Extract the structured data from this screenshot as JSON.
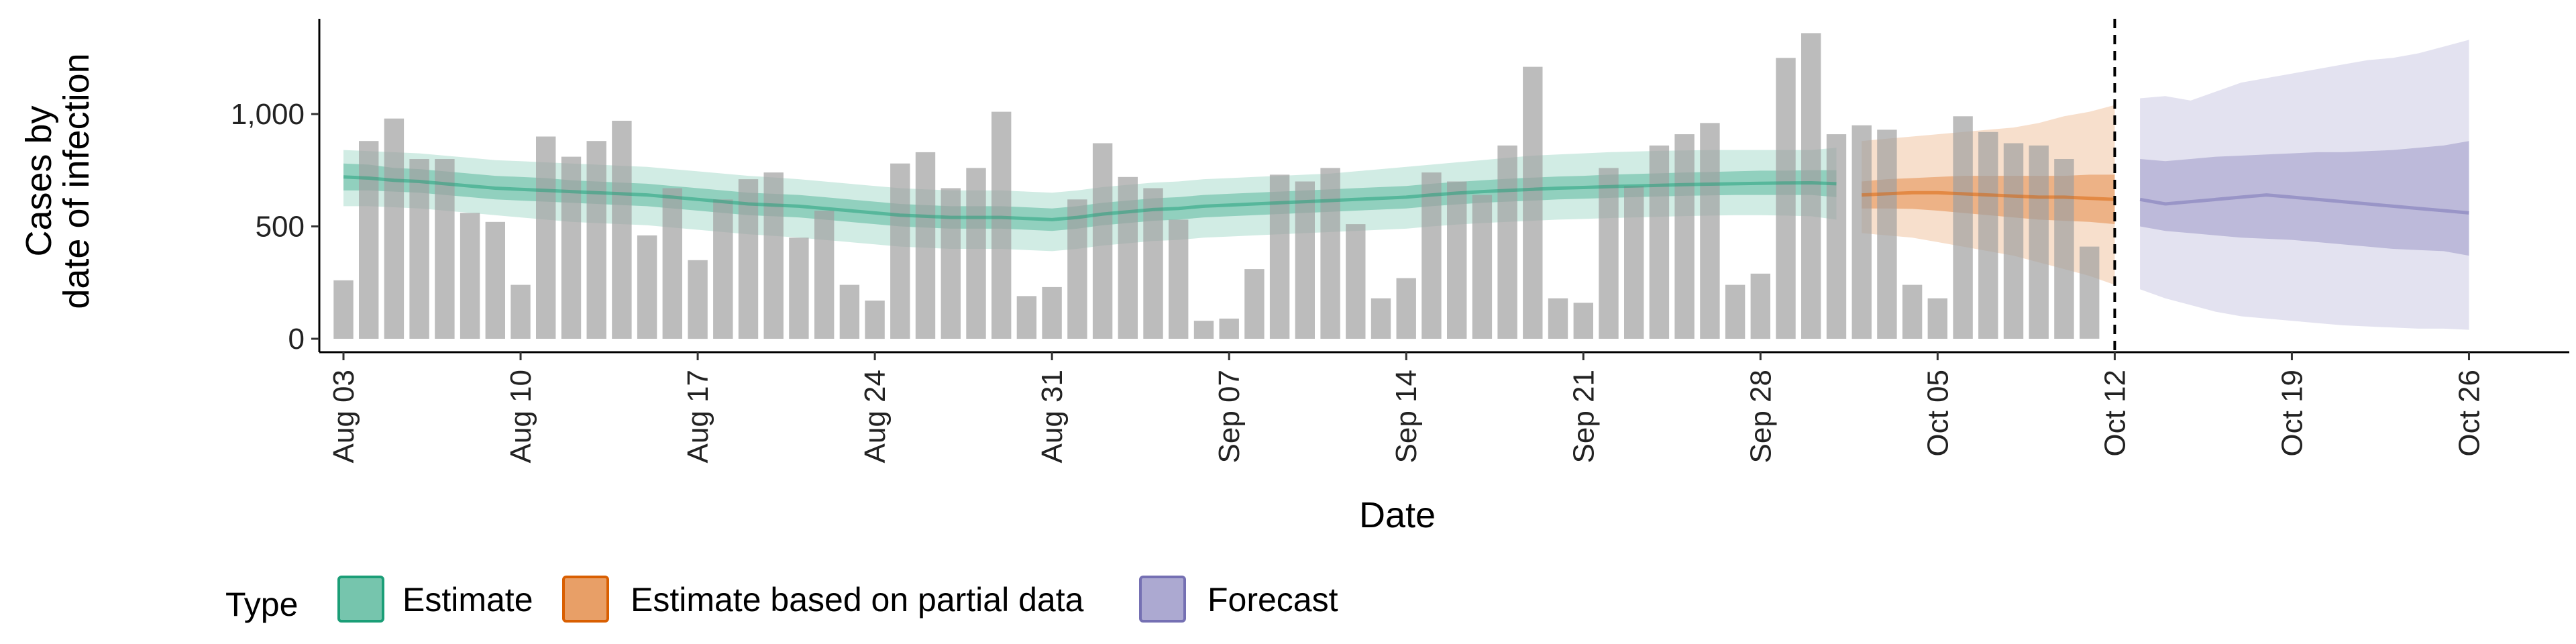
{
  "chart_data": {
    "type": "bar",
    "xlabel": "Date",
    "ylabel_lines": [
      "Cases by",
      "date of infection"
    ],
    "ylim": [
      0,
      1400
    ],
    "y_ticks": [
      {
        "value": 0,
        "label": "0"
      },
      {
        "value": 500,
        "label": "500"
      },
      {
        "value": 1000,
        "label": "1,000"
      }
    ],
    "x_ticks": [
      {
        "day": 0,
        "label": "Aug 03"
      },
      {
        "day": 7,
        "label": "Aug 10"
      },
      {
        "day": 14,
        "label": "Aug 17"
      },
      {
        "day": 21,
        "label": "Aug 24"
      },
      {
        "day": 28,
        "label": "Aug 31"
      },
      {
        "day": 35,
        "label": "Sep 07"
      },
      {
        "day": 42,
        "label": "Sep 14"
      },
      {
        "day": 49,
        "label": "Sep 21"
      },
      {
        "day": 56,
        "label": "Sep 28"
      },
      {
        "day": 63,
        "label": "Oct 05"
      },
      {
        "day": 70,
        "label": "Oct 12"
      },
      {
        "day": 77,
        "label": "Oct 19"
      },
      {
        "day": 84,
        "label": "Oct 26"
      }
    ],
    "reported_cases": [
      260,
      880,
      980,
      800,
      800,
      560,
      520,
      240,
      900,
      810,
      880,
      970,
      460,
      670,
      350,
      620,
      710,
      740,
      450,
      570,
      240,
      170,
      780,
      830,
      670,
      760,
      1010,
      190,
      230,
      620,
      870,
      720,
      670,
      530,
      80,
      90,
      310,
      730,
      700,
      760,
      510,
      180,
      270,
      740,
      700,
      640,
      860,
      1210,
      180,
      160,
      760,
      680,
      860,
      910,
      960,
      240,
      290,
      1250,
      1360,
      910,
      950,
      930,
      240,
      180,
      990,
      920,
      870,
      860,
      800,
      410
    ],
    "series": [
      {
        "name": "Estimate",
        "color": "#1b9e77",
        "day_start": 0,
        "median": [
          720,
          715,
          705,
          700,
          690,
          680,
          670,
          665,
          660,
          655,
          650,
          645,
          640,
          630,
          620,
          610,
          600,
          595,
          590,
          580,
          570,
          560,
          550,
          545,
          540,
          540,
          540,
          535,
          530,
          540,
          555,
          565,
          575,
          580,
          590,
          595,
          600,
          605,
          610,
          615,
          620,
          625,
          630,
          640,
          648,
          655,
          660,
          665,
          670,
          673,
          677,
          680,
          683,
          686,
          688,
          690,
          692,
          693,
          694,
          690
        ],
        "inner_lo": [
          660,
          660,
          655,
          650,
          640,
          630,
          620,
          615,
          610,
          605,
          600,
          595,
          590,
          580,
          570,
          560,
          550,
          545,
          540,
          530,
          520,
          510,
          500,
          495,
          490,
          490,
          490,
          485,
          480,
          490,
          505,
          515,
          525,
          530,
          540,
          545,
          550,
          555,
          560,
          565,
          570,
          575,
          580,
          590,
          598,
          605,
          610,
          615,
          620,
          623,
          627,
          630,
          633,
          636,
          638,
          640,
          640,
          640,
          640,
          630
        ],
        "inner_hi": [
          780,
          775,
          760,
          755,
          745,
          735,
          725,
          720,
          715,
          705,
          700,
          695,
          690,
          680,
          670,
          660,
          650,
          645,
          640,
          630,
          620,
          610,
          600,
          595,
          590,
          590,
          590,
          585,
          580,
          590,
          605,
          615,
          625,
          630,
          640,
          645,
          650,
          655,
          660,
          665,
          670,
          675,
          680,
          690,
          698,
          705,
          712,
          717,
          722,
          725,
          730,
          733,
          736,
          740,
          742,
          745,
          748,
          748,
          750,
          750
        ],
        "outer_lo": [
          590,
          590,
          585,
          580,
          570,
          560,
          550,
          540,
          530,
          520,
          515,
          510,
          505,
          495,
          485,
          475,
          465,
          458,
          450,
          440,
          430,
          420,
          410,
          405,
          400,
          400,
          400,
          395,
          390,
          400,
          415,
          425,
          435,
          440,
          450,
          455,
          460,
          465,
          470,
          475,
          480,
          485,
          490,
          500,
          508,
          515,
          520,
          525,
          530,
          533,
          537,
          540,
          543,
          546,
          548,
          550,
          550,
          548,
          545,
          530
        ],
        "outer_hi": [
          840,
          835,
          830,
          825,
          815,
          805,
          795,
          790,
          785,
          780,
          775,
          770,
          765,
          755,
          745,
          735,
          725,
          718,
          710,
          700,
          690,
          680,
          670,
          665,
          660,
          660,
          660,
          655,
          650,
          660,
          675,
          685,
          695,
          700,
          710,
          715,
          720,
          725,
          730,
          735,
          745,
          755,
          765,
          775,
          785,
          795,
          805,
          815,
          820,
          825,
          830,
          833,
          836,
          838,
          840,
          840,
          840,
          840,
          840,
          850
        ]
      },
      {
        "name": "Estimate based on partial data",
        "color": "#d95f02",
        "day_start": 60,
        "median": [
          640,
          645,
          650,
          650,
          645,
          640,
          635,
          630,
          630,
          625,
          620
        ],
        "inner_lo": [
          580,
          580,
          578,
          570,
          560,
          550,
          540,
          530,
          525,
          520,
          510
        ],
        "inner_hi": [
          700,
          710,
          715,
          720,
          725,
          725,
          725,
          725,
          725,
          730,
          730
        ],
        "outer_lo": [
          470,
          460,
          450,
          430,
          410,
          390,
          370,
          340,
          310,
          280,
          240
        ],
        "outer_hi": [
          880,
          890,
          900,
          910,
          920,
          930,
          940,
          960,
          990,
          1010,
          1040
        ]
      },
      {
        "name": "Forecast",
        "color": "#7570b3",
        "day_start": 71,
        "median": [
          620,
          600,
          610,
          620,
          630,
          640,
          630,
          620,
          610,
          600,
          590,
          580,
          570,
          560
        ],
        "inner_lo": [
          500,
          480,
          470,
          460,
          450,
          445,
          440,
          430,
          420,
          410,
          400,
          395,
          390,
          370
        ],
        "inner_hi": [
          800,
          790,
          800,
          810,
          815,
          820,
          825,
          830,
          830,
          835,
          840,
          850,
          860,
          880
        ],
        "outer_lo": [
          220,
          180,
          150,
          120,
          100,
          90,
          80,
          70,
          60,
          55,
          50,
          45,
          45,
          40
        ],
        "outer_hi": [
          1070,
          1080,
          1060,
          1100,
          1140,
          1160,
          1180,
          1200,
          1220,
          1240,
          1250,
          1270,
          1300,
          1330
        ]
      }
    ],
    "vline_day": 70,
    "legend": {
      "title": "Type",
      "position": "bottom",
      "items": [
        "Estimate",
        "Estimate based on partial data",
        "Forecast"
      ]
    },
    "grid": false
  }
}
